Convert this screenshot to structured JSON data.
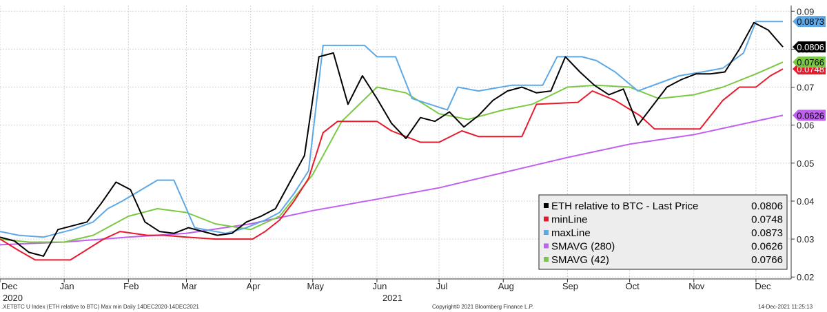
{
  "chart_data": {
    "type": "line",
    "title": "",
    "xlabel": "",
    "ylabel": "",
    "ylim": [
      0.0195,
      0.0915
    ],
    "xlim": [
      "2020-12-01",
      "2021-12-18"
    ],
    "grid": true,
    "legend_position": "bottom-right",
    "x_ticks": [
      {
        "label": "Dec",
        "date": "2020-12-01"
      },
      {
        "label": "Jan",
        "date": "2021-01-01"
      },
      {
        "label": "Feb",
        "date": "2021-02-01"
      },
      {
        "label": "Mar",
        "date": "2021-03-01"
      },
      {
        "label": "Apr",
        "date": "2021-04-01"
      },
      {
        "label": "May",
        "date": "2021-05-01"
      },
      {
        "label": "Jun",
        "date": "2021-06-01"
      },
      {
        "label": "Jul",
        "date": "2021-07-01"
      },
      {
        "label": "Aug",
        "date": "2021-08-01"
      },
      {
        "label": "Sep",
        "date": "2021-09-01"
      },
      {
        "label": "Oct",
        "date": "2021-10-01"
      },
      {
        "label": "Nov",
        "date": "2021-11-01"
      },
      {
        "label": "Dec",
        "date": "2021-12-01"
      }
    ],
    "x_year_labels": [
      {
        "label": "2020",
        "date": "2020-12-01"
      },
      {
        "label": "2021",
        "date": "2021-06-01"
      }
    ],
    "y_ticks": [
      0.02,
      0.03,
      0.04,
      0.05,
      0.06,
      0.07,
      0.08,
      0.09
    ],
    "y_tick_labels": [
      "0.02",
      "0.03",
      "0.04",
      "0.05",
      "0.06",
      "0.07",
      "0.08",
      "0.09"
    ],
    "series": [
      {
        "name": "ETH relative to BTC - Last Price",
        "last_value": "0.0806",
        "color": "#000000",
        "x": [
          "2020-12-01",
          "2020-12-08",
          "2020-12-15",
          "2020-12-22",
          "2020-12-29",
          "2021-01-05",
          "2021-01-12",
          "2021-01-19",
          "2021-01-26",
          "2021-02-02",
          "2021-02-09",
          "2021-02-16",
          "2021-02-23",
          "2021-03-02",
          "2021-03-09",
          "2021-03-16",
          "2021-03-23",
          "2021-03-30",
          "2021-04-06",
          "2021-04-13",
          "2021-04-20",
          "2021-04-27",
          "2021-05-04",
          "2021-05-11",
          "2021-05-18",
          "2021-05-25",
          "2021-06-01",
          "2021-06-08",
          "2021-06-15",
          "2021-06-22",
          "2021-06-29",
          "2021-07-06",
          "2021-07-13",
          "2021-07-20",
          "2021-07-27",
          "2021-08-03",
          "2021-08-10",
          "2021-08-17",
          "2021-08-24",
          "2021-08-31",
          "2021-09-07",
          "2021-09-14",
          "2021-09-21",
          "2021-09-28",
          "2021-10-05",
          "2021-10-12",
          "2021-10-19",
          "2021-10-26",
          "2021-11-02",
          "2021-11-09",
          "2021-11-16",
          "2021-11-23",
          "2021-11-30",
          "2021-12-07",
          "2021-12-14"
        ],
        "values": [
          0.0305,
          0.0295,
          0.0265,
          0.0255,
          0.0325,
          0.0335,
          0.0345,
          0.0395,
          0.045,
          0.043,
          0.0345,
          0.032,
          0.0315,
          0.033,
          0.032,
          0.031,
          0.0315,
          0.0345,
          0.036,
          0.038,
          0.045,
          0.052,
          0.078,
          0.079,
          0.0655,
          0.073,
          0.067,
          0.0605,
          0.0565,
          0.062,
          0.061,
          0.0635,
          0.0595,
          0.0625,
          0.0665,
          0.069,
          0.07,
          0.0685,
          0.069,
          0.078,
          0.074,
          0.0705,
          0.068,
          0.0695,
          0.06,
          0.065,
          0.07,
          0.072,
          0.0735,
          0.0735,
          0.074,
          0.08,
          0.087,
          0.085,
          0.0806
        ]
      },
      {
        "name": "minLine",
        "last_value": "0.0748",
        "color": "#e8192c",
        "x": [
          "2020-12-01",
          "2020-12-10",
          "2020-12-18",
          "2021-01-04",
          "2021-01-20",
          "2021-01-28",
          "2021-02-10",
          "2021-02-18",
          "2021-03-01",
          "2021-03-15",
          "2021-03-22",
          "2021-04-02",
          "2021-04-08",
          "2021-04-15",
          "2021-04-22",
          "2021-04-29",
          "2021-05-06",
          "2021-05-13",
          "2021-05-20",
          "2021-06-01",
          "2021-06-08",
          "2021-06-22",
          "2021-07-01",
          "2021-07-12",
          "2021-07-20",
          "2021-08-10",
          "2021-08-17",
          "2021-09-06",
          "2021-09-13",
          "2021-09-24",
          "2021-10-06",
          "2021-10-13",
          "2021-10-26",
          "2021-11-04",
          "2021-11-15",
          "2021-11-23",
          "2021-12-01",
          "2021-12-08",
          "2021-12-14"
        ],
        "values": [
          0.03,
          0.027,
          0.0245,
          0.0245,
          0.03,
          0.032,
          0.031,
          0.031,
          0.0305,
          0.03,
          0.03,
          0.03,
          0.032,
          0.035,
          0.04,
          0.046,
          0.058,
          0.061,
          0.061,
          0.061,
          0.0585,
          0.0555,
          0.0555,
          0.0585,
          0.057,
          0.057,
          0.0655,
          0.066,
          0.069,
          0.0665,
          0.0625,
          0.059,
          0.059,
          0.059,
          0.0665,
          0.07,
          0.07,
          0.073,
          0.0748
        ]
      },
      {
        "name": "maxLine",
        "last_value": "0.0873",
        "color": "#5ea8e6",
        "x": [
          "2020-12-01",
          "2020-12-10",
          "2020-12-22",
          "2021-01-05",
          "2021-01-15",
          "2021-01-22",
          "2021-01-29",
          "2021-02-15",
          "2021-02-23",
          "2021-03-05",
          "2021-03-20",
          "2021-03-30",
          "2021-04-08",
          "2021-04-15",
          "2021-04-22",
          "2021-04-29",
          "2021-05-06",
          "2021-05-26",
          "2021-06-01",
          "2021-06-10",
          "2021-06-18",
          "2021-07-05",
          "2021-07-10",
          "2021-07-20",
          "2021-08-05",
          "2021-08-20",
          "2021-08-27",
          "2021-09-08",
          "2021-09-15",
          "2021-09-24",
          "2021-10-05",
          "2021-10-15",
          "2021-10-25",
          "2021-11-05",
          "2021-11-15",
          "2021-11-25",
          "2021-12-01",
          "2021-12-14"
        ],
        "values": [
          0.032,
          0.031,
          0.0305,
          0.0325,
          0.0345,
          0.038,
          0.04,
          0.0455,
          0.0455,
          0.033,
          0.0315,
          0.033,
          0.035,
          0.037,
          0.042,
          0.048,
          0.081,
          0.081,
          0.078,
          0.078,
          0.067,
          0.064,
          0.07,
          0.069,
          0.0705,
          0.0705,
          0.078,
          0.078,
          0.077,
          0.074,
          0.069,
          0.071,
          0.073,
          0.074,
          0.075,
          0.079,
          0.0873,
          0.0873
        ]
      },
      {
        "name": "SMAVG (280)",
        "last_value": "0.0626",
        "color": "#c060f0",
        "x": [
          "2020-12-01",
          "2021-01-01",
          "2021-02-01",
          "2021-03-01",
          "2021-04-01",
          "2021-05-01",
          "2021-06-01",
          "2021-07-01",
          "2021-08-01",
          "2021-09-01",
          "2021-10-01",
          "2021-11-01",
          "2021-12-14"
        ],
        "values": [
          0.0285,
          0.0292,
          0.0305,
          0.0315,
          0.034,
          0.0375,
          0.0405,
          0.0435,
          0.0475,
          0.0515,
          0.055,
          0.0575,
          0.0626
        ]
      },
      {
        "name": "SMAVG (42)",
        "last_value": "0.0766",
        "color": "#7ac943",
        "x": [
          "2020-12-01",
          "2020-12-15",
          "2021-01-01",
          "2021-01-15",
          "2021-02-01",
          "2021-02-15",
          "2021-03-01",
          "2021-03-15",
          "2021-04-01",
          "2021-04-15",
          "2021-05-01",
          "2021-05-15",
          "2021-06-01",
          "2021-06-15",
          "2021-07-01",
          "2021-07-15",
          "2021-08-01",
          "2021-08-15",
          "2021-09-01",
          "2021-09-15",
          "2021-10-01",
          "2021-10-15",
          "2021-11-01",
          "2021-11-15",
          "2021-12-01",
          "2021-12-14"
        ],
        "values": [
          0.03,
          0.0292,
          0.0292,
          0.031,
          0.036,
          0.038,
          0.037,
          0.034,
          0.0325,
          0.036,
          0.047,
          0.061,
          0.07,
          0.0685,
          0.063,
          0.0615,
          0.064,
          0.0655,
          0.07,
          0.0705,
          0.07,
          0.067,
          0.068,
          0.07,
          0.0735,
          0.0766
        ]
      }
    ]
  },
  "footer": {
    "left": ".XETBTC U Index (ETH relative to BTC) Max min  Daily 14DEC2020-14DEC2021",
    "center": "Copyright© 2021 Bloomberg Finance L.P.",
    "right": "14-Dec-2021 11:25:13"
  }
}
